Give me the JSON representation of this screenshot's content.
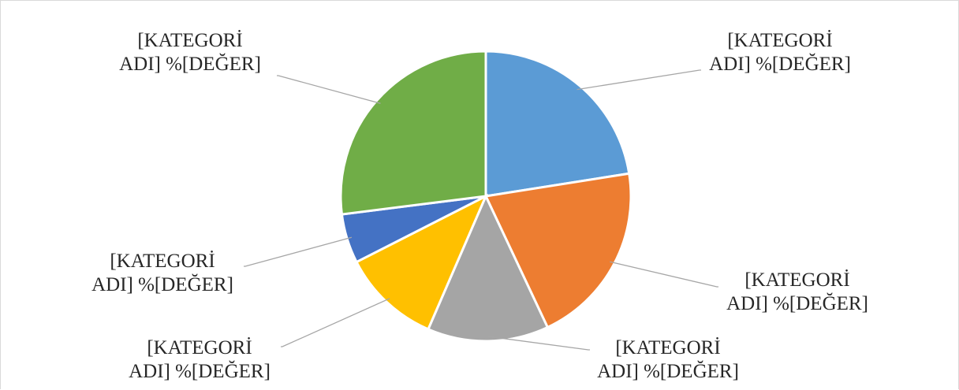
{
  "chart_data": {
    "type": "pie",
    "title": "",
    "slices": [
      {
        "label_line1": "[KATEGORİ",
        "label_line2": "ADI] %[DEĞER]",
        "value": 22.5,
        "color": "#5b9bd5"
      },
      {
        "label_line1": "[KATEGORİ",
        "label_line2": "ADI] %[DEĞER]",
        "value": 20.5,
        "color": "#ed7d31"
      },
      {
        "label_line1": "[KATEGORİ",
        "label_line2": "ADI] %[DEĞER]",
        "value": 13.5,
        "color": "#a5a5a5"
      },
      {
        "label_line1": "[KATEGORİ",
        "label_line2": "ADI] %[DEĞER]",
        "value": 11,
        "color": "#ffc000"
      },
      {
        "label_line1": "[KATEGORİ",
        "label_line2": "ADI] %[DEĞER]",
        "value": 5.5,
        "color": "#4472c4"
      },
      {
        "label_line1": "[KATEGORİ",
        "label_line2": "ADI] %[DEĞER]",
        "value": 27,
        "color": "#70ad47"
      }
    ],
    "legend": "none",
    "data_labels": "outside-with-leader-lines"
  }
}
